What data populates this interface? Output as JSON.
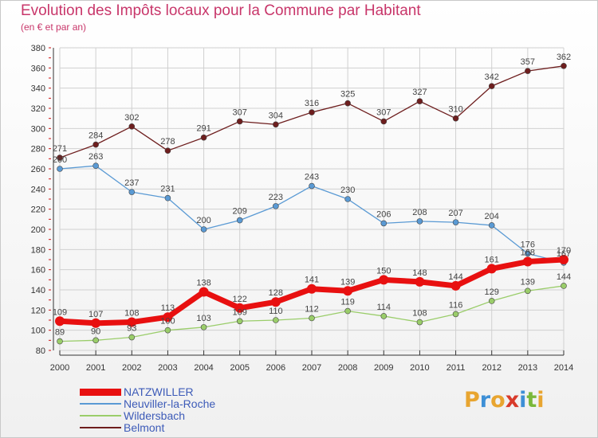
{
  "title": "Evolution des Impôts locaux pour la Commune par Habitant",
  "subtitle": "(en € et par an)",
  "logo": {
    "text": "Proxiti",
    "letters": [
      "P",
      "r",
      "o",
      "x",
      "i",
      "t",
      "i"
    ],
    "colors": [
      "#e8a530",
      "#3d8fd6",
      "#e8a530",
      "#d83a2a",
      "#3d8fd6",
      "#7ab83a",
      "#e8a530"
    ]
  },
  "colors": {
    "title": "#c8366a",
    "grid": "#d0d0d0",
    "axis_label": "#333333",
    "value_label": "#444444",
    "legend_text": "#3d5bb8"
  },
  "chart_data": {
    "type": "line",
    "title": "Evolution des Impôts locaux pour la Commune par Habitant",
    "subtitle": "(en € et par an)",
    "x": [
      "2000",
      "2001",
      "2002",
      "2003",
      "2004",
      "2005",
      "2006",
      "2007",
      "2008",
      "2009",
      "2010",
      "2011",
      "2012",
      "2013",
      "2014"
    ],
    "ylim": [
      80,
      380
    ],
    "yticks": [
      80,
      100,
      120,
      140,
      160,
      180,
      200,
      220,
      240,
      260,
      280,
      300,
      320,
      340,
      360,
      380
    ],
    "grid": true,
    "legend_position": "bottom-left",
    "series": [
      {
        "name": "NATZWILLER",
        "color": "#e81010",
        "values": [
          109,
          107,
          108,
          113,
          138,
          122,
          128,
          141,
          139,
          150,
          148,
          144,
          161,
          168,
          170
        ]
      },
      {
        "name": "Neuviller-la-Roche",
        "color": "#5a9ad4",
        "values": [
          260,
          263,
          237,
          231,
          200,
          209,
          223,
          243,
          230,
          206,
          208,
          207,
          204,
          176,
          167
        ]
      },
      {
        "name": "Wildersbach",
        "color": "#9acd6a",
        "values": [
          89,
          90,
          93,
          100,
          103,
          109,
          110,
          112,
          119,
          114,
          108,
          116,
          129,
          139,
          144
        ]
      },
      {
        "name": "Belmont",
        "color": "#6e1e1e",
        "values": [
          271,
          284,
          302,
          278,
          291,
          307,
          304,
          316,
          325,
          307,
          327,
          310,
          342,
          357,
          362
        ]
      }
    ]
  }
}
